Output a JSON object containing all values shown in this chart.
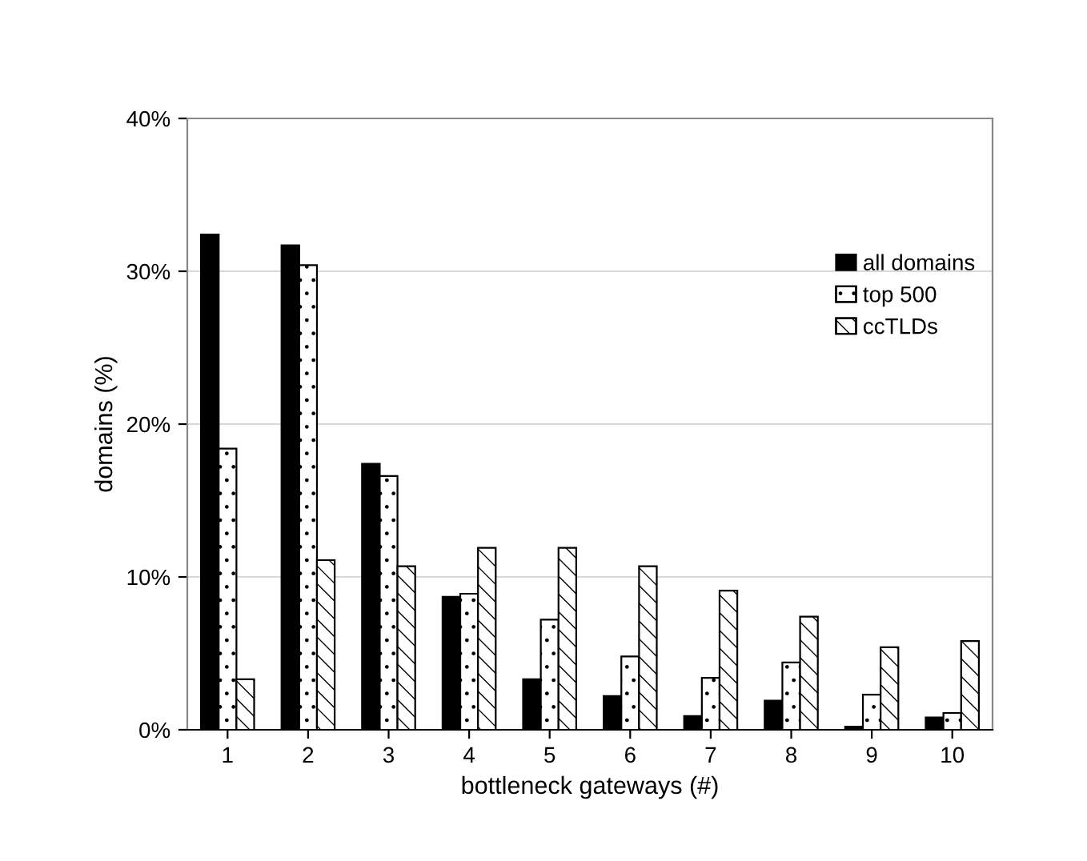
{
  "chart_data": {
    "type": "bar",
    "xlabel": "bottleneck gateways (#)",
    "ylabel": "domains (%)",
    "categories": [
      "1",
      "2",
      "3",
      "4",
      "5",
      "6",
      "7",
      "8",
      "9",
      "10"
    ],
    "series": [
      {
        "name": "all domains",
        "color": "#000000",
        "values": [
          32.4,
          31.7,
          17.4,
          8.7,
          3.3,
          2.2,
          0.9,
          1.9,
          0.2,
          0.8
        ]
      },
      {
        "name": "top 500",
        "color": "#ffffff",
        "values": [
          18.4,
          30.4,
          16.6,
          8.9,
          7.2,
          4.8,
          3.4,
          4.4,
          2.3,
          1.1
        ]
      },
      {
        "name": "ccTLDs",
        "color": "#ffffff",
        "values": [
          3.3,
          11.1,
          10.7,
          11.9,
          11.9,
          10.7,
          9.1,
          7.4,
          5.4,
          5.8
        ]
      }
    ],
    "ylim": [
      0,
      40
    ],
    "yticks": [
      {
        "value": 0,
        "label": "0%"
      },
      {
        "value": 10,
        "label": "10%"
      },
      {
        "value": 20,
        "label": "20%"
      },
      {
        "value": 30,
        "label": "30%"
      },
      {
        "value": 40,
        "label": "40%"
      }
    ],
    "grid": "y",
    "legend": "top right"
  }
}
